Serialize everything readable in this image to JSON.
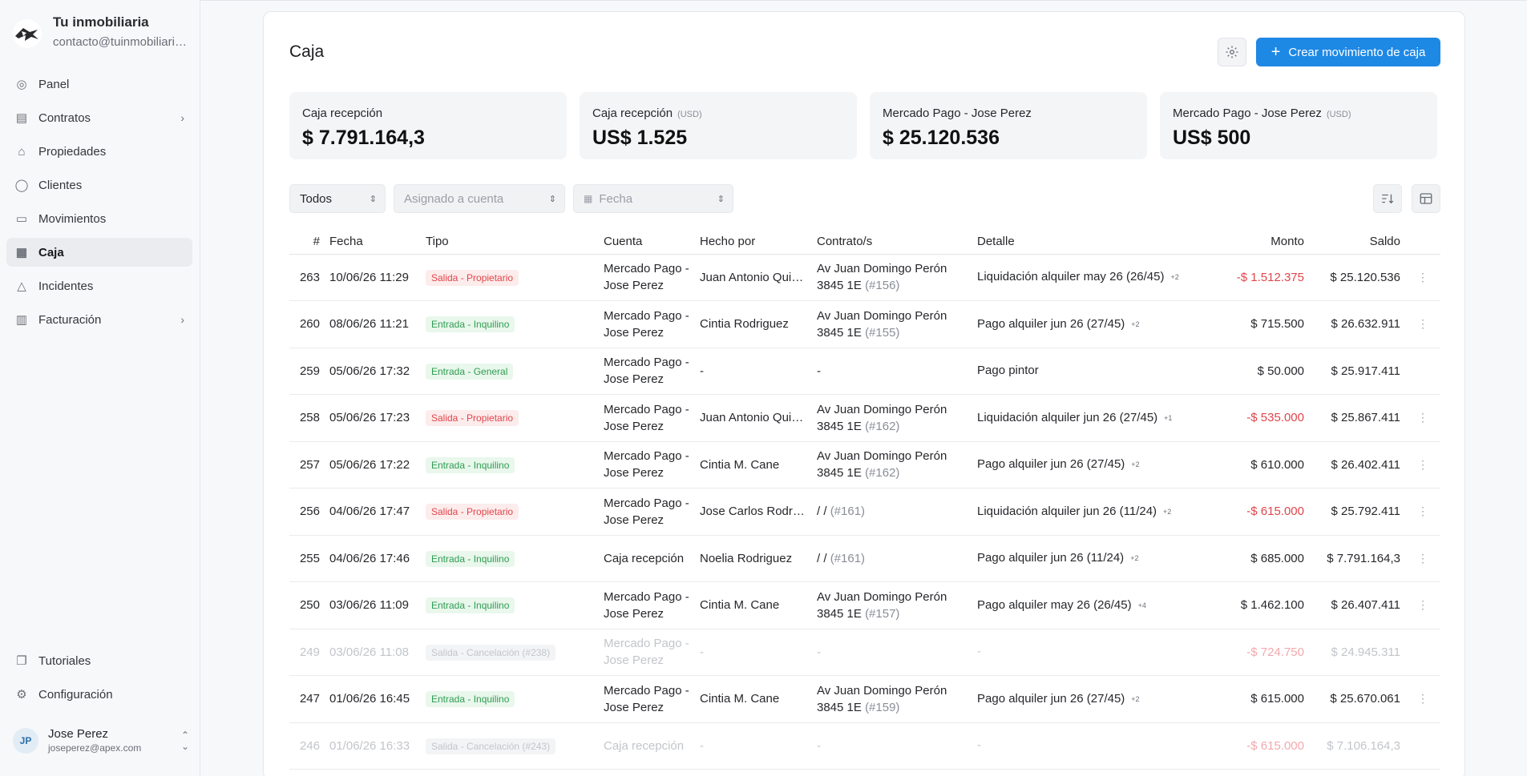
{
  "brand": {
    "name": "Tu inmobiliaria",
    "email": "contacto@tuinmobiliaria.com"
  },
  "nav": [
    {
      "label": "Panel",
      "icon": "dashboard-icon",
      "chevron": false,
      "active": false
    },
    {
      "label": "Contratos",
      "icon": "contract-icon",
      "chevron": true,
      "active": false
    },
    {
      "label": "Propiedades",
      "icon": "home-icon",
      "chevron": false,
      "active": false
    },
    {
      "label": "Clientes",
      "icon": "user-icon",
      "chevron": false,
      "active": false
    },
    {
      "label": "Movimientos",
      "icon": "wallet-icon",
      "chevron": false,
      "active": false
    },
    {
      "label": "Caja",
      "icon": "calculator-icon",
      "chevron": false,
      "active": true
    },
    {
      "label": "Incidentes",
      "icon": "warning-icon",
      "chevron": false,
      "active": false
    },
    {
      "label": "Facturación",
      "icon": "invoice-icon",
      "chevron": true,
      "active": false
    }
  ],
  "nav_bottom": [
    {
      "label": "Tutoriales",
      "icon": "book-icon"
    },
    {
      "label": "Configuración",
      "icon": "gear-icon"
    }
  ],
  "user": {
    "initials": "JP",
    "name": "Jose Perez",
    "email": "joseperez@apex.com"
  },
  "page": {
    "title": "Caja",
    "create_label": "Crear movimiento de caja"
  },
  "cards": [
    {
      "label": "Caja recepción",
      "currency": "",
      "value": "$ 7.791.164,3"
    },
    {
      "label": "Caja recepción",
      "currency": "(USD)",
      "value": "US$ 1.525"
    },
    {
      "label": "Mercado Pago - Jose Perez",
      "currency": "",
      "value": "$ 25.120.536"
    },
    {
      "label": "Mercado Pago - Jose Perez",
      "currency": "(USD)",
      "value": "US$ 500"
    }
  ],
  "filters": {
    "type": "Todos",
    "account_placeholder": "Asignado a cuenta",
    "date_placeholder": "Fecha"
  },
  "table": {
    "headers": {
      "num": "#",
      "fecha": "Fecha",
      "tipo": "Tipo",
      "cuenta": "Cuenta",
      "hecho": "Hecho por",
      "contrato": "Contrato/s",
      "detalle": "Detalle",
      "monto": "Monto",
      "saldo": "Saldo"
    },
    "rows": [
      {
        "num": "263",
        "fecha": "10/06/26 11:29",
        "tipo": "Salida - Propietario",
        "kind": "out",
        "cuenta": "Mercado Pago - Jose Perez",
        "hecho": "Juan Antonio Quintero",
        "contrato": "Av Juan Domingo Perón 3845 1E",
        "ref": "(#156)",
        "detalle": "Liquidación alquiler may 26 (26/45)",
        "plus": "+2",
        "monto": "-$ 1.512.375",
        "neg": true,
        "saldo": "$ 25.120.536",
        "menu": true,
        "muted": false
      },
      {
        "num": "260",
        "fecha": "08/06/26 11:21",
        "tipo": "Entrada - Inquilino",
        "kind": "in",
        "cuenta": "Mercado Pago - Jose Perez",
        "hecho": "Cintia Rodriguez",
        "contrato": "Av Juan Domingo Perón 3845 1E",
        "ref": "(#155)",
        "detalle": "Pago alquiler jun 26 (27/45)",
        "plus": "+2",
        "monto": "$ 715.500",
        "neg": false,
        "saldo": "$ 26.632.911",
        "menu": true,
        "muted": false
      },
      {
        "num": "259",
        "fecha": "05/06/26 17:32",
        "tipo": "Entrada - General",
        "kind": "in",
        "cuenta": "Mercado Pago - Jose Perez",
        "hecho": "-",
        "contrato": "-",
        "ref": "",
        "detalle": "Pago pintor",
        "plus": "",
        "monto": "$ 50.000",
        "neg": false,
        "saldo": "$ 25.917.411",
        "menu": false,
        "muted": false
      },
      {
        "num": "258",
        "fecha": "05/06/26 17:23",
        "tipo": "Salida - Propietario",
        "kind": "out",
        "cuenta": "Mercado Pago - Jose Perez",
        "hecho": "Juan Antonio Quintero",
        "contrato": "Av Juan Domingo Perón 3845 1E",
        "ref": "(#162)",
        "detalle": "Liquidación alquiler jun 26 (27/45)",
        "plus": "+1",
        "monto": "-$ 535.000",
        "neg": true,
        "saldo": "$ 25.867.411",
        "menu": true,
        "muted": false
      },
      {
        "num": "257",
        "fecha": "05/06/26 17:22",
        "tipo": "Entrada - Inquilino",
        "kind": "in",
        "cuenta": "Mercado Pago - Jose Perez",
        "hecho": "Cintia M. Cane",
        "contrato": "Av Juan Domingo Perón 3845 1E",
        "ref": "(#162)",
        "detalle": "Pago alquiler jun 26 (27/45)",
        "plus": "+2",
        "monto": "$ 610.000",
        "neg": false,
        "saldo": "$ 26.402.411",
        "menu": true,
        "muted": false
      },
      {
        "num": "256",
        "fecha": "04/06/26 17:47",
        "tipo": "Salida - Propietario",
        "kind": "out",
        "cuenta": "Mercado Pago - Jose Perez",
        "hecho": "Jose Carlos Rodriguez",
        "contrato": "/ /",
        "ref": "(#161)",
        "detalle": "Liquidación alquiler jun 26 (11/24)",
        "plus": "+2",
        "monto": "-$ 615.000",
        "neg": true,
        "saldo": "$ 25.792.411",
        "menu": true,
        "muted": false
      },
      {
        "num": "255",
        "fecha": "04/06/26 17:46",
        "tipo": "Entrada - Inquilino",
        "kind": "in",
        "cuenta": "Caja recepción",
        "hecho": "Noelia Rodriguez",
        "contrato": "/ /",
        "ref": "(#161)",
        "detalle": "Pago alquiler jun 26 (11/24)",
        "plus": "+2",
        "monto": "$ 685.000",
        "neg": false,
        "saldo": "$ 7.791.164,3",
        "menu": true,
        "muted": false
      },
      {
        "num": "250",
        "fecha": "03/06/26 11:09",
        "tipo": "Entrada - Inquilino",
        "kind": "in",
        "cuenta": "Mercado Pago - Jose Perez",
        "hecho": "Cintia M. Cane",
        "contrato": "Av Juan Domingo Perón 3845 1E",
        "ref": "(#157)",
        "detalle": "Pago alquiler may 26 (26/45)",
        "plus": "+4",
        "monto": "$ 1.462.100",
        "neg": false,
        "saldo": "$ 26.407.411",
        "menu": true,
        "muted": false
      },
      {
        "num": "249",
        "fecha": "03/06/26 11:08",
        "tipo": "Salida - Cancelación (#238)",
        "kind": "cancel",
        "cuenta": "Mercado Pago - Jose Perez",
        "hecho": "-",
        "contrato": "-",
        "ref": "",
        "detalle": "-",
        "plus": "",
        "monto": "-$ 724.750",
        "neg": true,
        "saldo": "$ 24.945.311",
        "menu": false,
        "muted": true
      },
      {
        "num": "247",
        "fecha": "01/06/26 16:45",
        "tipo": "Entrada - Inquilino",
        "kind": "in",
        "cuenta": "Mercado Pago - Jose Perez",
        "hecho": "Cintia M. Cane",
        "contrato": "Av Juan Domingo Perón 3845 1E",
        "ref": "(#159)",
        "detalle": "Pago alquiler jun 26 (27/45)",
        "plus": "+2",
        "monto": "$ 615.000",
        "neg": false,
        "saldo": "$ 25.670.061",
        "menu": true,
        "muted": false
      },
      {
        "num": "246",
        "fecha": "01/06/26 16:33",
        "tipo": "Salida - Cancelación (#243)",
        "kind": "cancel",
        "cuenta": "Caja recepción",
        "hecho": "-",
        "contrato": "-",
        "ref": "",
        "detalle": "-",
        "plus": "",
        "monto": "-$ 615.000",
        "neg": true,
        "saldo": "$ 7.106.164,3",
        "menu": false,
        "muted": true
      }
    ]
  }
}
